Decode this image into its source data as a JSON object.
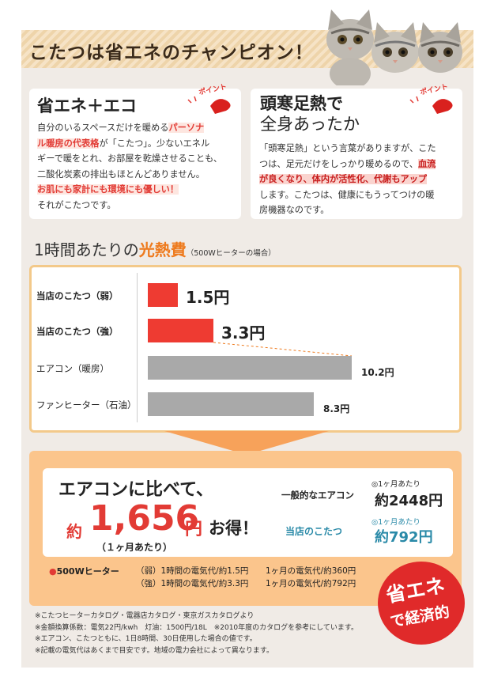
{
  "header": {
    "title": "こたつは省エネのチャンピオン！"
  },
  "card_eco": {
    "title": "省エネ＋エコ",
    "point_label": "ポイント",
    "lines": [
      {
        "pre": "自分のいるスペースだけを暖める",
        "hl": "パーソナ",
        "post": ""
      },
      {
        "pre": "",
        "hl": "ル暖房の代表格",
        "post": "が「こたつ」。少ないエネル"
      },
      {
        "pre": "ギーで暖をとれ、お部屋を乾燥させることも、",
        "hl": "",
        "post": ""
      },
      {
        "pre": "二酸化炭素の排出もほとんどありません。",
        "hl": "",
        "post": ""
      },
      {
        "pre": "",
        "hl": "お肌にも家計にも環境にも優しい！",
        "post": ""
      },
      {
        "pre": "それがこたつです。",
        "hl": "",
        "post": ""
      }
    ]
  },
  "card_head": {
    "title": "頭寒足熱で",
    "title_sub": "全身あったか",
    "point_label": "ポイント",
    "lines": [
      {
        "pre": "「頭寒足熱」という言葉がありますが、こた",
        "hl": "",
        "post": ""
      },
      {
        "pre": "つは、足元だけをしっかり暖めるので、",
        "hl": "血流",
        "post": ""
      },
      {
        "pre": "",
        "hl": "が良くなり、体内が活性化、代謝もアップ",
        "post": ""
      },
      {
        "pre": "します。こたつは、健康にもうってつけの暖",
        "hl": "",
        "post": ""
      },
      {
        "pre": "房機器なのです。",
        "hl": "",
        "post": ""
      }
    ]
  },
  "section": {
    "title_pre": "1時間あたりの",
    "title_hl": "光熱費",
    "title_note": "（500Wヒーターの場合）"
  },
  "chart_data": {
    "type": "bar",
    "categories": [
      "当店のこたつ（弱）",
      "当店のこたつ（強）",
      "エアコン（暖房）",
      "ファンヒーター（石油）"
    ],
    "values": [
      1.5,
      3.3,
      10.2,
      8.3
    ],
    "value_labels": [
      "1.5円",
      "3.3円",
      "10.2円",
      "8.3円"
    ],
    "unit": "円",
    "colors": [
      "#ee3b32",
      "#ee3b32",
      "#a9a9a9",
      "#a9a9a9"
    ],
    "xlim": [
      0,
      10.2
    ]
  },
  "compare": {
    "headline": "エアコンに比べて、",
    "prefix": "約",
    "amount": "1,656",
    "yen": "円",
    "suffix": "お得！",
    "period": "（１ヶ月あたり）",
    "general_label": "一般的なエアコン",
    "general_per": "◎1ヶ月あたり",
    "general_amount": "約2448円",
    "ours_label": "当店のこたつ",
    "ours_per": "◎1ヶ月あたり",
    "ours_amount": "約792円"
  },
  "heater": {
    "label": "500Wヒーター",
    "rows": [
      {
        "mode": "（弱）1時間の電気代/約1.5円",
        "month": "1ヶ月の電気代/約360円"
      },
      {
        "mode": "（強）1時間の電気代/約3.3円",
        "month": "1ヶ月の電気代/約792円"
      }
    ]
  },
  "badge": {
    "line1": "省エネ",
    "line2": "で経済的",
    "color": "#e02a2a"
  },
  "notes": [
    "※こたつヒーターカタログ・電器店カタログ・東京ガスカタログより",
    "※金額換算係数：電気22円/kwh　灯油：1500円/18L　※2010年度のカタログを参考にしています。",
    "※エアコン、こたつともに、1日8時間、30日使用した場合の値です。",
    "※記載の電気代はあくまで目安です。地域の電力会社によって異なります。"
  ]
}
